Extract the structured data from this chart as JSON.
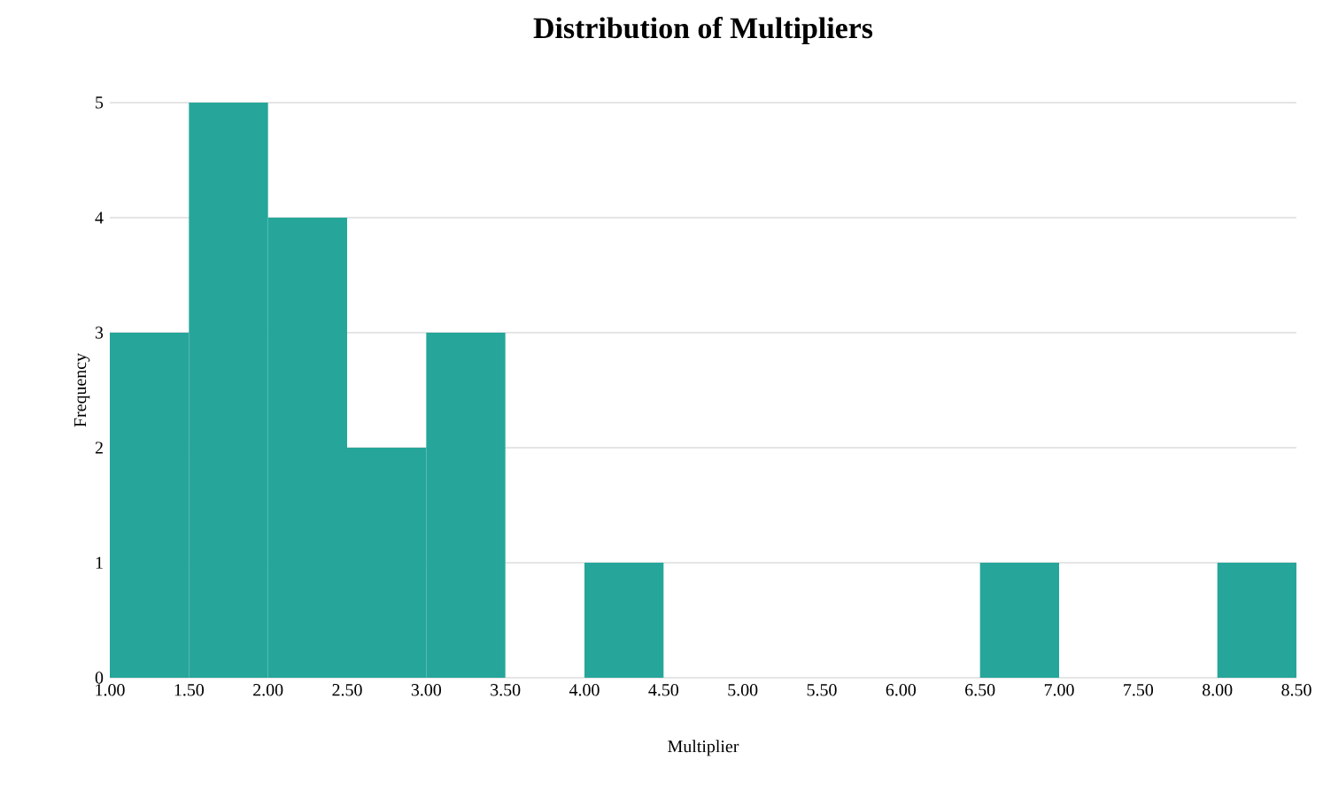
{
  "chart_data": {
    "type": "histogram",
    "title": "Distribution of Multipliers",
    "xlabel": "Multiplier",
    "ylabel": "Frequency",
    "bins": [
      1.0,
      1.5,
      2.0,
      2.5,
      3.0,
      3.5,
      4.0,
      4.5,
      5.0,
      5.5,
      6.0,
      6.5,
      7.0,
      7.5,
      8.0,
      8.5
    ],
    "values": [
      3,
      5,
      4,
      2,
      3,
      0,
      1,
      0,
      0,
      0,
      0,
      1,
      0,
      0,
      1
    ],
    "color": "#26a69a",
    "xlim": [
      1.0,
      8.5
    ],
    "xticks": [
      {
        "value": 1.0,
        "label": "1.00"
      },
      {
        "value": 1.5,
        "label": "1.50"
      },
      {
        "value": 2.0,
        "label": "2.00"
      },
      {
        "value": 2.5,
        "label": "2.50"
      },
      {
        "value": 3.0,
        "label": "3.00"
      },
      {
        "value": 3.5,
        "label": "3.50"
      },
      {
        "value": 4.0,
        "label": "4.00"
      },
      {
        "value": 4.5,
        "label": "4.50"
      },
      {
        "value": 5.0,
        "label": "5.00"
      },
      {
        "value": 5.5,
        "label": "5.50"
      },
      {
        "value": 6.0,
        "label": "6.00"
      },
      {
        "value": 6.5,
        "label": "6.50"
      },
      {
        "value": 7.0,
        "label": "7.00"
      },
      {
        "value": 7.5,
        "label": "7.50"
      },
      {
        "value": 8.0,
        "label": "8.00"
      },
      {
        "value": 8.5,
        "label": "8.50"
      }
    ],
    "ylim": [
      0,
      5
    ],
    "yticks": [
      0,
      1,
      2,
      3,
      4,
      5
    ],
    "grid": "y"
  }
}
